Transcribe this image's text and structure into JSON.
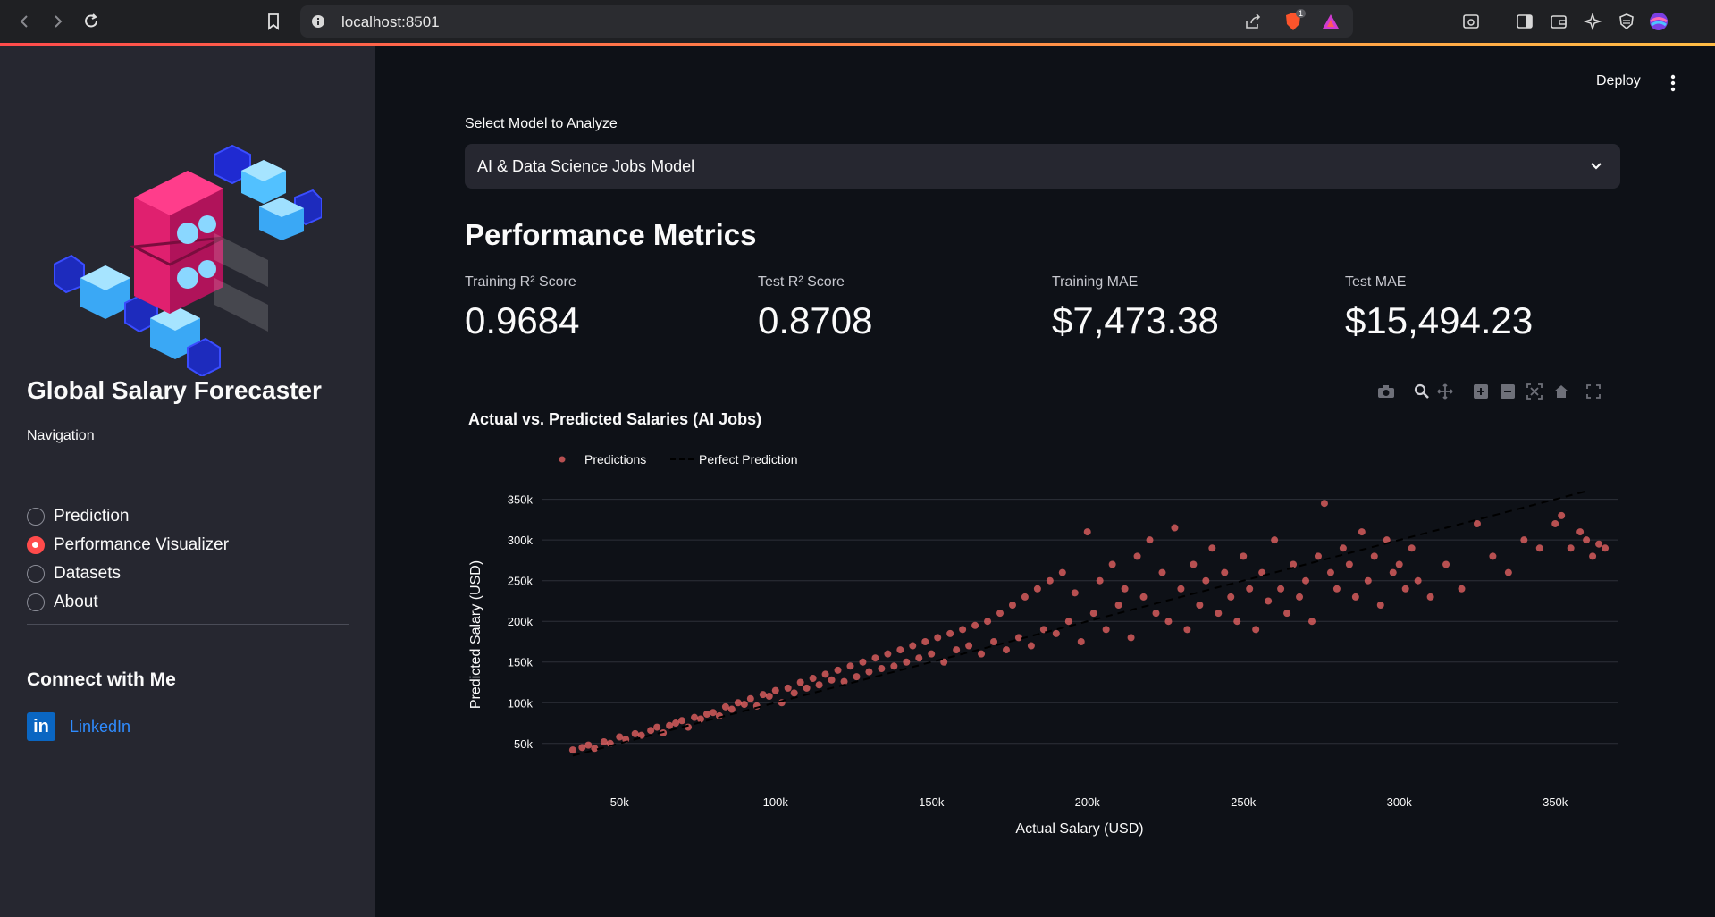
{
  "browser": {
    "url": "localhost:8501",
    "shield_badge": "1"
  },
  "sidebar": {
    "title": "Global Salary Forecaster",
    "nav_label": "Navigation",
    "nav_items": [
      {
        "label": "Prediction",
        "selected": false
      },
      {
        "label": "Performance Visualizer",
        "selected": true
      },
      {
        "label": "Datasets",
        "selected": false
      },
      {
        "label": "About",
        "selected": false
      }
    ],
    "connect_title": "Connect with Me",
    "linkedin_label": "LinkedIn",
    "linkedin_logo_text": "in"
  },
  "header": {
    "deploy_label": "Deploy"
  },
  "main": {
    "select_label": "Select Model to Analyze",
    "select_value": "AI & Data Science Jobs Model",
    "section_title": "Performance Metrics",
    "metrics": [
      {
        "label": "Training R² Score",
        "value": "0.9684"
      },
      {
        "label": "Test R² Score",
        "value": "0.8708"
      },
      {
        "label": "Training MAE",
        "value": "$7,473.38"
      },
      {
        "label": "Test MAE",
        "value": "$15,494.23"
      }
    ]
  },
  "colors": {
    "accent": "#ff4b4b",
    "points": "#ff6b6b",
    "sidebar_bg": "#262730",
    "main_bg": "#0e1117",
    "link": "#2f8cff"
  },
  "chart_data": {
    "type": "scatter",
    "title": "Actual vs. Predicted Salaries (AI Jobs)",
    "xlabel": "Actual Salary (USD)",
    "ylabel": "Predicted Salary (USD)",
    "xlim": [
      25000,
      370000
    ],
    "ylim": [
      30000,
      365000
    ],
    "x_ticks": [
      {
        "value": 50000,
        "label": "50k"
      },
      {
        "value": 100000,
        "label": "100k"
      },
      {
        "value": 150000,
        "label": "150k"
      },
      {
        "value": 200000,
        "label": "200k"
      },
      {
        "value": 250000,
        "label": "250k"
      },
      {
        "value": 300000,
        "label": "300k"
      },
      {
        "value": 350000,
        "label": "350k"
      }
    ],
    "y_ticks": [
      {
        "value": 50000,
        "label": "50k"
      },
      {
        "value": 100000,
        "label": "100k"
      },
      {
        "value": 150000,
        "label": "150k"
      },
      {
        "value": 200000,
        "label": "200k"
      },
      {
        "value": 250000,
        "label": "250k"
      },
      {
        "value": 300000,
        "label": "300k"
      },
      {
        "value": 350000,
        "label": "350k"
      }
    ],
    "grid": true,
    "legend_placement": "top-left",
    "series": [
      {
        "name": "Predictions",
        "mode": "markers",
        "color": "#ff6b6b",
        "points": [
          [
            35000,
            42000
          ],
          [
            38000,
            45000
          ],
          [
            40000,
            48000
          ],
          [
            42000,
            44000
          ],
          [
            45000,
            52000
          ],
          [
            47000,
            50000
          ],
          [
            50000,
            58000
          ],
          [
            52000,
            55000
          ],
          [
            55000,
            62000
          ],
          [
            57000,
            60000
          ],
          [
            60000,
            66000
          ],
          [
            62000,
            70000
          ],
          [
            64000,
            63000
          ],
          [
            66000,
            72000
          ],
          [
            68000,
            75000
          ],
          [
            70000,
            78000
          ],
          [
            72000,
            70000
          ],
          [
            74000,
            82000
          ],
          [
            76000,
            80000
          ],
          [
            78000,
            86000
          ],
          [
            80000,
            88000
          ],
          [
            82000,
            84000
          ],
          [
            84000,
            95000
          ],
          [
            86000,
            92000
          ],
          [
            88000,
            100000
          ],
          [
            90000,
            98000
          ],
          [
            92000,
            105000
          ],
          [
            94000,
            96000
          ],
          [
            96000,
            110000
          ],
          [
            98000,
            108000
          ],
          [
            100000,
            115000
          ],
          [
            102000,
            100000
          ],
          [
            104000,
            118000
          ],
          [
            106000,
            112000
          ],
          [
            108000,
            125000
          ],
          [
            110000,
            118000
          ],
          [
            112000,
            130000
          ],
          [
            114000,
            122000
          ],
          [
            116000,
            135000
          ],
          [
            118000,
            128000
          ],
          [
            120000,
            140000
          ],
          [
            122000,
            126000
          ],
          [
            124000,
            145000
          ],
          [
            126000,
            132000
          ],
          [
            128000,
            150000
          ],
          [
            130000,
            138000
          ],
          [
            132000,
            155000
          ],
          [
            134000,
            142000
          ],
          [
            136000,
            160000
          ],
          [
            138000,
            145000
          ],
          [
            140000,
            165000
          ],
          [
            142000,
            150000
          ],
          [
            144000,
            170000
          ],
          [
            146000,
            155000
          ],
          [
            148000,
            175000
          ],
          [
            150000,
            160000
          ],
          [
            152000,
            180000
          ],
          [
            154000,
            150000
          ],
          [
            156000,
            185000
          ],
          [
            158000,
            165000
          ],
          [
            160000,
            190000
          ],
          [
            162000,
            170000
          ],
          [
            164000,
            195000
          ],
          [
            166000,
            160000
          ],
          [
            168000,
            200000
          ],
          [
            170000,
            175000
          ],
          [
            172000,
            210000
          ],
          [
            174000,
            165000
          ],
          [
            176000,
            220000
          ],
          [
            178000,
            180000
          ],
          [
            180000,
            230000
          ],
          [
            182000,
            170000
          ],
          [
            184000,
            240000
          ],
          [
            186000,
            190000
          ],
          [
            188000,
            250000
          ],
          [
            190000,
            185000
          ],
          [
            192000,
            260000
          ],
          [
            194000,
            200000
          ],
          [
            196000,
            235000
          ],
          [
            198000,
            175000
          ],
          [
            200000,
            310000
          ],
          [
            202000,
            210000
          ],
          [
            204000,
            250000
          ],
          [
            206000,
            190000
          ],
          [
            208000,
            270000
          ],
          [
            210000,
            220000
          ],
          [
            212000,
            240000
          ],
          [
            214000,
            180000
          ],
          [
            216000,
            280000
          ],
          [
            218000,
            230000
          ],
          [
            220000,
            300000
          ],
          [
            222000,
            210000
          ],
          [
            224000,
            260000
          ],
          [
            226000,
            200000
          ],
          [
            228000,
            315000
          ],
          [
            230000,
            240000
          ],
          [
            232000,
            190000
          ],
          [
            234000,
            270000
          ],
          [
            236000,
            220000
          ],
          [
            238000,
            250000
          ],
          [
            240000,
            290000
          ],
          [
            242000,
            210000
          ],
          [
            244000,
            260000
          ],
          [
            246000,
            230000
          ],
          [
            248000,
            200000
          ],
          [
            250000,
            280000
          ],
          [
            252000,
            240000
          ],
          [
            254000,
            190000
          ],
          [
            256000,
            260000
          ],
          [
            258000,
            225000
          ],
          [
            260000,
            300000
          ],
          [
            262000,
            240000
          ],
          [
            264000,
            210000
          ],
          [
            266000,
            270000
          ],
          [
            268000,
            230000
          ],
          [
            270000,
            250000
          ],
          [
            272000,
            200000
          ],
          [
            274000,
            280000
          ],
          [
            276000,
            345000
          ],
          [
            278000,
            260000
          ],
          [
            280000,
            240000
          ],
          [
            282000,
            290000
          ],
          [
            284000,
            270000
          ],
          [
            286000,
            230000
          ],
          [
            288000,
            310000
          ],
          [
            290000,
            250000
          ],
          [
            292000,
            280000
          ],
          [
            294000,
            220000
          ],
          [
            296000,
            300000
          ],
          [
            298000,
            260000
          ],
          [
            300000,
            270000
          ],
          [
            302000,
            240000
          ],
          [
            304000,
            290000
          ],
          [
            306000,
            250000
          ],
          [
            310000,
            230000
          ],
          [
            315000,
            270000
          ],
          [
            320000,
            240000
          ],
          [
            325000,
            320000
          ],
          [
            330000,
            280000
          ],
          [
            335000,
            260000
          ],
          [
            340000,
            300000
          ],
          [
            345000,
            290000
          ],
          [
            350000,
            320000
          ],
          [
            352000,
            330000
          ],
          [
            355000,
            290000
          ],
          [
            358000,
            310000
          ],
          [
            360000,
            300000
          ],
          [
            362000,
            280000
          ],
          [
            364000,
            295000
          ],
          [
            366000,
            290000
          ]
        ]
      },
      {
        "name": "Perfect Prediction",
        "mode": "lines",
        "style": "dash",
        "color": "#000000",
        "points": [
          [
            35000,
            35000
          ],
          [
            360000,
            360000
          ]
        ]
      }
    ]
  }
}
